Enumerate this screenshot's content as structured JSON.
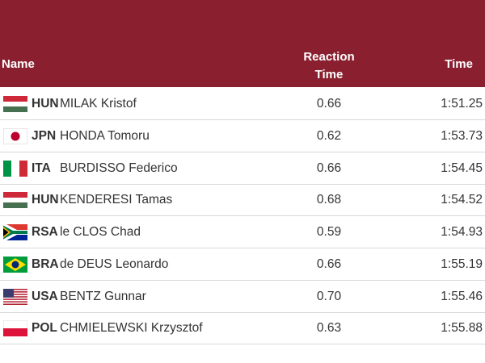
{
  "header": {
    "name": "Name",
    "reaction": "Reaction Time",
    "time": "Time"
  },
  "table": {
    "rows": [
      [
        "HUN",
        "MILAK Kristof",
        "0.66",
        "1:51.25"
      ],
      [
        "JPN",
        "HONDA Tomoru",
        "0.62",
        "1:53.73"
      ],
      [
        "ITA",
        "BURDISSO Federico",
        "0.66",
        "1:54.45"
      ],
      [
        "HUN",
        "KENDERESI Tamas",
        "0.68",
        "1:54.52"
      ],
      [
        "RSA",
        "le CLOS Chad",
        "0.59",
        "1:54.93"
      ],
      [
        "BRA",
        "de DEUS Leonardo",
        "0.66",
        "1:55.19"
      ],
      [
        "USA",
        "BENTZ Gunnar",
        "0.70",
        "1:55.46"
      ],
      [
        "POL",
        "CHMIELEWSKI Krzysztof",
        "0.63",
        "1:55.88"
      ]
    ]
  }
}
